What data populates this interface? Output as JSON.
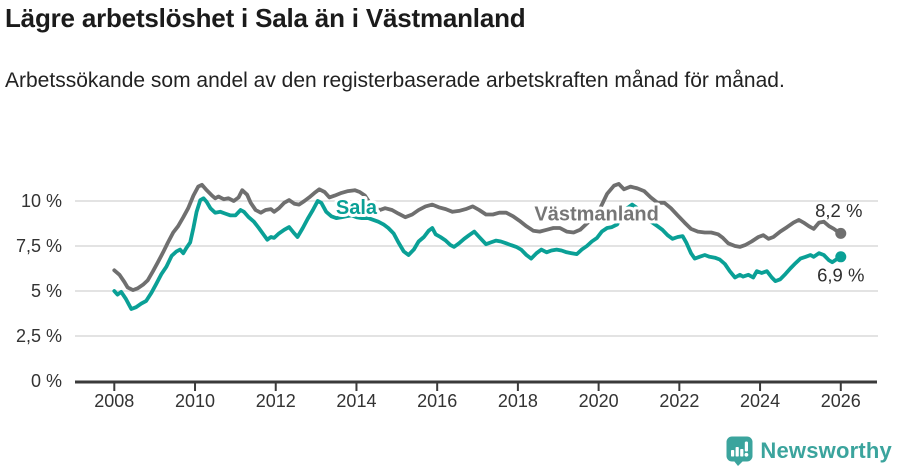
{
  "header": {
    "title": "Lägre arbetslöshet i Sala än i Västmanland",
    "subtitle": "Arbetssökande som andel av den registerbaserade arbetskraften månad för månad."
  },
  "chart_data": {
    "type": "line",
    "title": "Lägre arbetslöshet i Sala än i Västmanland",
    "subtitle": "Arbetssökande som andel av den registerbaserade arbetskraften månad för månad.",
    "xlabel": "",
    "ylabel": "",
    "unit": "%",
    "grid": "horizontal",
    "xlim": [
      2007.75,
      2026.9
    ],
    "ylim": [
      0,
      11.6
    ],
    "x_ticks": [
      "2008",
      "2010",
      "2012",
      "2014",
      "2016",
      "2018",
      "2020",
      "2022",
      "2024",
      "2026"
    ],
    "y_ticks": [
      {
        "value": 0,
        "label": "0 %"
      },
      {
        "value": 2.5,
        "label": "2,5 %"
      },
      {
        "value": 5,
        "label": "5 %"
      },
      {
        "value": 7.5,
        "label": "7,5 %"
      },
      {
        "value": 10,
        "label": "10 %"
      }
    ],
    "colors": {
      "axis": "#3a3a3a",
      "grid": "#dadada",
      "tick_text": "#333333",
      "value_text": "#2e2e2e"
    },
    "series": [
      {
        "name": "Västmanland",
        "color": "#6f6f6f",
        "label_color": "#767676",
        "end_label": "8,2 %",
        "end_label_side": "above",
        "label_pos": {
          "year": 2019.95,
          "value": 9.3
        },
        "points": [
          [
            2008.0,
            6.15
          ],
          [
            2008.13,
            5.9
          ],
          [
            2008.25,
            5.5
          ],
          [
            2008.33,
            5.2
          ],
          [
            2008.46,
            5.05
          ],
          [
            2008.58,
            5.15
          ],
          [
            2008.71,
            5.35
          ],
          [
            2008.83,
            5.6
          ],
          [
            2008.96,
            6.1
          ],
          [
            2009.08,
            6.6
          ],
          [
            2009.21,
            7.15
          ],
          [
            2009.33,
            7.7
          ],
          [
            2009.46,
            8.25
          ],
          [
            2009.58,
            8.6
          ],
          [
            2009.71,
            9.1
          ],
          [
            2009.83,
            9.6
          ],
          [
            2009.96,
            10.3
          ],
          [
            2010.08,
            10.8
          ],
          [
            2010.17,
            10.9
          ],
          [
            2010.29,
            10.6
          ],
          [
            2010.42,
            10.3
          ],
          [
            2010.5,
            10.15
          ],
          [
            2010.58,
            10.25
          ],
          [
            2010.71,
            10.1
          ],
          [
            2010.83,
            10.15
          ],
          [
            2010.96,
            10.0
          ],
          [
            2011.08,
            10.2
          ],
          [
            2011.17,
            10.6
          ],
          [
            2011.29,
            10.35
          ],
          [
            2011.38,
            9.9
          ],
          [
            2011.5,
            9.5
          ],
          [
            2011.63,
            9.35
          ],
          [
            2011.75,
            9.5
          ],
          [
            2011.88,
            9.55
          ],
          [
            2011.96,
            9.4
          ],
          [
            2012.08,
            9.6
          ],
          [
            2012.21,
            9.9
          ],
          [
            2012.33,
            10.05
          ],
          [
            2012.46,
            9.85
          ],
          [
            2012.58,
            9.8
          ],
          [
            2012.71,
            10.0
          ],
          [
            2012.83,
            10.2
          ],
          [
            2012.96,
            10.45
          ],
          [
            2013.08,
            10.65
          ],
          [
            2013.21,
            10.5
          ],
          [
            2013.33,
            10.2
          ],
          [
            2013.46,
            10.3
          ],
          [
            2013.63,
            10.45
          ],
          [
            2013.79,
            10.55
          ],
          [
            2013.96,
            10.6
          ],
          [
            2014.08,
            10.5
          ],
          [
            2014.21,
            10.3
          ],
          [
            2014.33,
            9.9
          ],
          [
            2014.46,
            9.6
          ],
          [
            2014.58,
            9.5
          ],
          [
            2014.71,
            9.6
          ],
          [
            2014.88,
            9.5
          ],
          [
            2015.04,
            9.3
          ],
          [
            2015.21,
            9.1
          ],
          [
            2015.38,
            9.25
          ],
          [
            2015.54,
            9.5
          ],
          [
            2015.71,
            9.7
          ],
          [
            2015.88,
            9.8
          ],
          [
            2016.04,
            9.65
          ],
          [
            2016.21,
            9.55
          ],
          [
            2016.38,
            9.4
          ],
          [
            2016.54,
            9.45
          ],
          [
            2016.71,
            9.55
          ],
          [
            2016.88,
            9.7
          ],
          [
            2017.04,
            9.5
          ],
          [
            2017.21,
            9.25
          ],
          [
            2017.38,
            9.25
          ],
          [
            2017.54,
            9.35
          ],
          [
            2017.71,
            9.35
          ],
          [
            2017.88,
            9.15
          ],
          [
            2018.04,
            8.9
          ],
          [
            2018.21,
            8.6
          ],
          [
            2018.38,
            8.35
          ],
          [
            2018.54,
            8.3
          ],
          [
            2018.71,
            8.4
          ],
          [
            2018.88,
            8.5
          ],
          [
            2019.04,
            8.5
          ],
          [
            2019.21,
            8.3
          ],
          [
            2019.38,
            8.25
          ],
          [
            2019.54,
            8.4
          ],
          [
            2019.71,
            8.75
          ],
          [
            2019.88,
            9.1
          ],
          [
            2020.04,
            9.6
          ],
          [
            2020.21,
            10.4
          ],
          [
            2020.38,
            10.85
          ],
          [
            2020.5,
            10.95
          ],
          [
            2020.63,
            10.65
          ],
          [
            2020.79,
            10.8
          ],
          [
            2020.96,
            10.7
          ],
          [
            2021.13,
            10.55
          ],
          [
            2021.29,
            10.2
          ],
          [
            2021.46,
            9.9
          ],
          [
            2021.63,
            9.9
          ],
          [
            2021.79,
            9.6
          ],
          [
            2021.96,
            9.2
          ],
          [
            2022.13,
            8.8
          ],
          [
            2022.29,
            8.45
          ],
          [
            2022.46,
            8.3
          ],
          [
            2022.63,
            8.25
          ],
          [
            2022.79,
            8.25
          ],
          [
            2022.96,
            8.15
          ],
          [
            2023.08,
            7.95
          ],
          [
            2023.21,
            7.65
          ],
          [
            2023.38,
            7.5
          ],
          [
            2023.5,
            7.45
          ],
          [
            2023.63,
            7.55
          ],
          [
            2023.79,
            7.75
          ],
          [
            2023.96,
            8.0
          ],
          [
            2024.08,
            8.1
          ],
          [
            2024.21,
            7.9
          ],
          [
            2024.33,
            8.0
          ],
          [
            2024.5,
            8.3
          ],
          [
            2024.67,
            8.55
          ],
          [
            2024.83,
            8.8
          ],
          [
            2024.96,
            8.95
          ],
          [
            2025.08,
            8.8
          ],
          [
            2025.21,
            8.6
          ],
          [
            2025.33,
            8.45
          ],
          [
            2025.46,
            8.8
          ],
          [
            2025.58,
            8.85
          ],
          [
            2025.71,
            8.6
          ],
          [
            2025.83,
            8.45
          ],
          [
            2025.92,
            8.3
          ],
          [
            2026.0,
            8.2
          ]
        ]
      },
      {
        "name": "Sala",
        "color": "#0aa096",
        "label_color": "#0aa096",
        "end_label": "6,9 %",
        "end_label_side": "below",
        "label_pos": {
          "year": 2014.0,
          "value": 9.67
        },
        "points": [
          [
            2008.0,
            5.0
          ],
          [
            2008.08,
            4.8
          ],
          [
            2008.17,
            4.95
          ],
          [
            2008.29,
            4.55
          ],
          [
            2008.42,
            4.0
          ],
          [
            2008.54,
            4.1
          ],
          [
            2008.67,
            4.3
          ],
          [
            2008.79,
            4.45
          ],
          [
            2008.92,
            4.9
          ],
          [
            2009.04,
            5.4
          ],
          [
            2009.17,
            5.95
          ],
          [
            2009.29,
            6.35
          ],
          [
            2009.42,
            6.95
          ],
          [
            2009.54,
            7.2
          ],
          [
            2009.63,
            7.3
          ],
          [
            2009.71,
            7.1
          ],
          [
            2009.79,
            7.4
          ],
          [
            2009.88,
            7.7
          ],
          [
            2009.96,
            8.5
          ],
          [
            2010.04,
            9.4
          ],
          [
            2010.13,
            10.05
          ],
          [
            2010.21,
            10.15
          ],
          [
            2010.29,
            9.95
          ],
          [
            2010.38,
            9.6
          ],
          [
            2010.5,
            9.35
          ],
          [
            2010.63,
            9.4
          ],
          [
            2010.75,
            9.3
          ],
          [
            2010.88,
            9.2
          ],
          [
            2011.0,
            9.2
          ],
          [
            2011.13,
            9.5
          ],
          [
            2011.21,
            9.4
          ],
          [
            2011.33,
            9.1
          ],
          [
            2011.46,
            8.85
          ],
          [
            2011.58,
            8.5
          ],
          [
            2011.71,
            8.1
          ],
          [
            2011.79,
            7.85
          ],
          [
            2011.88,
            8.0
          ],
          [
            2011.96,
            7.95
          ],
          [
            2012.08,
            8.2
          ],
          [
            2012.21,
            8.4
          ],
          [
            2012.33,
            8.55
          ],
          [
            2012.46,
            8.2
          ],
          [
            2012.54,
            8.0
          ],
          [
            2012.67,
            8.5
          ],
          [
            2012.79,
            9.0
          ],
          [
            2012.92,
            9.5
          ],
          [
            2013.04,
            10.0
          ],
          [
            2013.13,
            9.9
          ],
          [
            2013.25,
            9.4
          ],
          [
            2013.38,
            9.15
          ],
          [
            2013.5,
            9.05
          ],
          [
            2013.63,
            9.1
          ],
          [
            2013.75,
            9.15
          ],
          [
            2013.88,
            9.2
          ],
          [
            2014.0,
            9.1
          ],
          [
            2014.13,
            9.05
          ],
          [
            2014.29,
            9.05
          ],
          [
            2014.42,
            8.95
          ],
          [
            2014.54,
            8.85
          ],
          [
            2014.67,
            8.7
          ],
          [
            2014.79,
            8.5
          ],
          [
            2014.92,
            8.2
          ],
          [
            2015.04,
            7.7
          ],
          [
            2015.17,
            7.2
          ],
          [
            2015.29,
            7.0
          ],
          [
            2015.42,
            7.3
          ],
          [
            2015.54,
            7.75
          ],
          [
            2015.67,
            8.0
          ],
          [
            2015.79,
            8.35
          ],
          [
            2015.88,
            8.5
          ],
          [
            2015.96,
            8.15
          ],
          [
            2016.08,
            8.0
          ],
          [
            2016.21,
            7.8
          ],
          [
            2016.33,
            7.55
          ],
          [
            2016.42,
            7.45
          ],
          [
            2016.54,
            7.65
          ],
          [
            2016.67,
            7.9
          ],
          [
            2016.79,
            8.1
          ],
          [
            2016.92,
            8.3
          ],
          [
            2017.04,
            8.0
          ],
          [
            2017.21,
            7.6
          ],
          [
            2017.33,
            7.7
          ],
          [
            2017.46,
            7.8
          ],
          [
            2017.58,
            7.75
          ],
          [
            2017.71,
            7.65
          ],
          [
            2017.83,
            7.55
          ],
          [
            2017.96,
            7.45
          ],
          [
            2018.08,
            7.3
          ],
          [
            2018.21,
            7.0
          ],
          [
            2018.33,
            6.8
          ],
          [
            2018.46,
            7.1
          ],
          [
            2018.58,
            7.3
          ],
          [
            2018.71,
            7.15
          ],
          [
            2018.83,
            7.25
          ],
          [
            2018.96,
            7.3
          ],
          [
            2019.08,
            7.25
          ],
          [
            2019.21,
            7.15
          ],
          [
            2019.33,
            7.1
          ],
          [
            2019.46,
            7.05
          ],
          [
            2019.58,
            7.3
          ],
          [
            2019.71,
            7.5
          ],
          [
            2019.83,
            7.75
          ],
          [
            2019.96,
            7.95
          ],
          [
            2020.08,
            8.3
          ],
          [
            2020.21,
            8.5
          ],
          [
            2020.33,
            8.55
          ],
          [
            2020.46,
            8.7
          ],
          [
            2020.58,
            9.2
          ],
          [
            2020.71,
            9.6
          ],
          [
            2020.83,
            9.8
          ],
          [
            2020.96,
            9.6
          ],
          [
            2021.08,
            9.3
          ],
          [
            2021.21,
            9.0
          ],
          [
            2021.33,
            8.8
          ],
          [
            2021.46,
            8.6
          ],
          [
            2021.58,
            8.4
          ],
          [
            2021.71,
            8.1
          ],
          [
            2021.83,
            7.9
          ],
          [
            2021.96,
            8.0
          ],
          [
            2022.08,
            8.05
          ],
          [
            2022.17,
            7.7
          ],
          [
            2022.29,
            7.1
          ],
          [
            2022.38,
            6.8
          ],
          [
            2022.5,
            6.9
          ],
          [
            2022.63,
            7.0
          ],
          [
            2022.75,
            6.9
          ],
          [
            2022.88,
            6.85
          ],
          [
            2023.0,
            6.75
          ],
          [
            2023.13,
            6.5
          ],
          [
            2023.25,
            6.1
          ],
          [
            2023.38,
            5.75
          ],
          [
            2023.5,
            5.9
          ],
          [
            2023.58,
            5.8
          ],
          [
            2023.71,
            5.9
          ],
          [
            2023.83,
            5.75
          ],
          [
            2023.92,
            6.1
          ],
          [
            2024.04,
            6.0
          ],
          [
            2024.17,
            6.1
          ],
          [
            2024.29,
            5.75
          ],
          [
            2024.38,
            5.55
          ],
          [
            2024.5,
            5.65
          ],
          [
            2024.63,
            5.95
          ],
          [
            2024.75,
            6.25
          ],
          [
            2024.88,
            6.55
          ],
          [
            2025.0,
            6.8
          ],
          [
            2025.13,
            6.9
          ],
          [
            2025.25,
            7.0
          ],
          [
            2025.33,
            6.9
          ],
          [
            2025.46,
            7.1
          ],
          [
            2025.58,
            7.0
          ],
          [
            2025.71,
            6.7
          ],
          [
            2025.79,
            6.6
          ],
          [
            2025.92,
            6.8
          ],
          [
            2026.0,
            6.9
          ]
        ]
      }
    ],
    "legend_position": "inline-labels"
  },
  "footer": {
    "brand": "Newsworthy",
    "brand_color": "#3ba49d"
  }
}
